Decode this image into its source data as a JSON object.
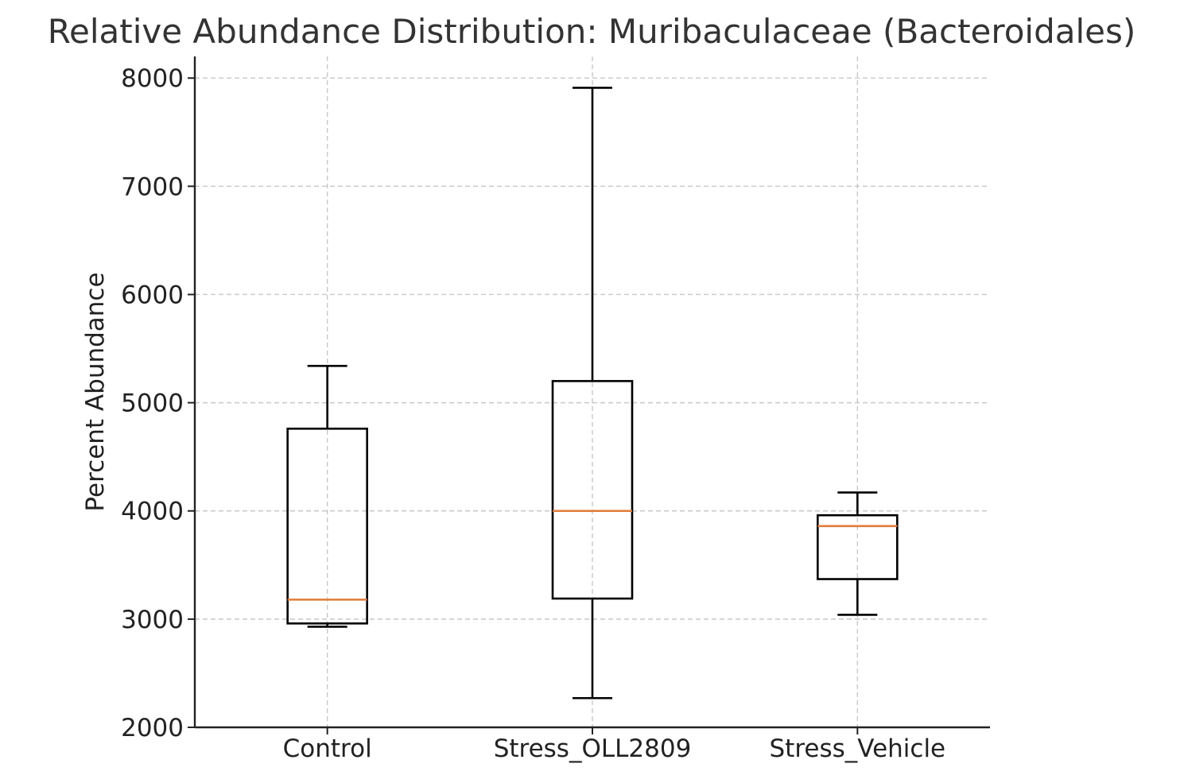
{
  "chart_data": {
    "type": "box",
    "title": "Relative Abundance Distribution: Muribaculaceae (Bacteroidales)",
    "xlabel": "",
    "ylabel": "Percent Abundance",
    "ylim": [
      2000,
      8200
    ],
    "yticks": [
      2000,
      3000,
      4000,
      5000,
      6000,
      7000,
      8000
    ],
    "grid": true,
    "median_color": "#e07b39",
    "box_color": "#000000",
    "categories": [
      "Control",
      "Stress_OLL2809",
      "Stress_Vehicle"
    ],
    "boxes": [
      {
        "category": "Control",
        "whisker_low": 2930,
        "q1": 2960,
        "median": 3180,
        "q3": 4760,
        "whisker_high": 5340
      },
      {
        "category": "Stress_OLL2809",
        "whisker_low": 2270,
        "q1": 3190,
        "median": 4000,
        "q3": 5200,
        "whisker_high": 7910
      },
      {
        "category": "Stress_Vehicle",
        "whisker_low": 3040,
        "q1": 3370,
        "median": 3860,
        "q3": 3960,
        "whisker_high": 4170
      }
    ]
  }
}
